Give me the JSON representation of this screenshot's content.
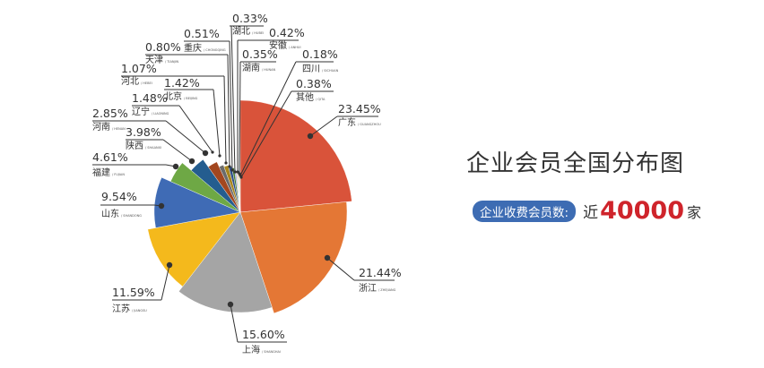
{
  "title": "企业会员全国分布图",
  "summary": {
    "label": "企业收费会员数:",
    "prefix": "近",
    "count": "40000",
    "unit": "家",
    "count_color": "#cf242b",
    "badge_color": "#3d6cb3"
  },
  "chart_data": {
    "type": "pie",
    "title": "企业会员全国分布图",
    "start": "12 o'clock, clockwise",
    "slices": [
      {
        "name": "广东",
        "pinyin": "GUANGZHOU",
        "value": 23.45,
        "label": "23.45%",
        "color": "#d9533a"
      },
      {
        "name": "浙江",
        "pinyin": "ZHEJIANG",
        "value": 21.44,
        "label": "21.44%",
        "color": "#e47735"
      },
      {
        "name": "上海",
        "pinyin": "SHANGHAI",
        "value": 15.6,
        "label": "15.60%",
        "color": "#a5a5a5"
      },
      {
        "name": "江苏",
        "pinyin": "JIANGSU",
        "value": 11.59,
        "label": "11.59%",
        "color": "#f4b91c"
      },
      {
        "name": "山东",
        "pinyin": "SHANDONG",
        "value": 9.54,
        "label": "9.54%",
        "color": "#3f6bb5"
      },
      {
        "name": "福建",
        "pinyin": "FUJIAN",
        "value": 4.61,
        "label": "4.61%",
        "color": "#6ea845"
      },
      {
        "name": "陕西",
        "pinyin": "SHAANXI",
        "value": 3.98,
        "label": "3.98%",
        "color": "#245d8f"
      },
      {
        "name": "河南",
        "pinyin": "HENAN",
        "value": 2.85,
        "label": "2.85%",
        "color": "#a3471f"
      },
      {
        "name": "辽宁",
        "pinyin": "LIAONING",
        "value": 1.48,
        "label": "1.48%",
        "color": "#6b6b6b"
      },
      {
        "name": "北京",
        "pinyin": "BEIJING",
        "value": 1.42,
        "label": "1.42%",
        "color": "#a8851d"
      },
      {
        "name": "河北",
        "pinyin": "HEBEI",
        "value": 1.07,
        "label": "1.07%",
        "color": "#2d4f8a"
      },
      {
        "name": "天津",
        "pinyin": "TIANJIN",
        "value": 0.8,
        "label": "0.80%",
        "color": "#4c7d32"
      },
      {
        "name": "重庆",
        "pinyin": "CHONGQING",
        "value": 0.51,
        "label": "0.51%",
        "color": "#7b9bd1"
      },
      {
        "name": "湖北",
        "pinyin": "HUBEI",
        "value": 0.33,
        "label": "0.33%",
        "color": "#f0a070"
      },
      {
        "name": "安徽",
        "pinyin": "ANHUI",
        "value": 0.42,
        "label": "0.42%",
        "color": "#c8c8c8"
      },
      {
        "name": "湖南",
        "pinyin": "HUNAN",
        "value": 0.35,
        "label": "0.35%",
        "color": "#ffd966"
      },
      {
        "name": "四川",
        "pinyin": "SICHUAN",
        "value": 0.18,
        "label": "0.18%",
        "color": "#8fb4e0"
      },
      {
        "name": "其他",
        "pinyin": "QITA",
        "value": 0.38,
        "label": "0.38%",
        "color": "#a9d18e"
      }
    ]
  }
}
